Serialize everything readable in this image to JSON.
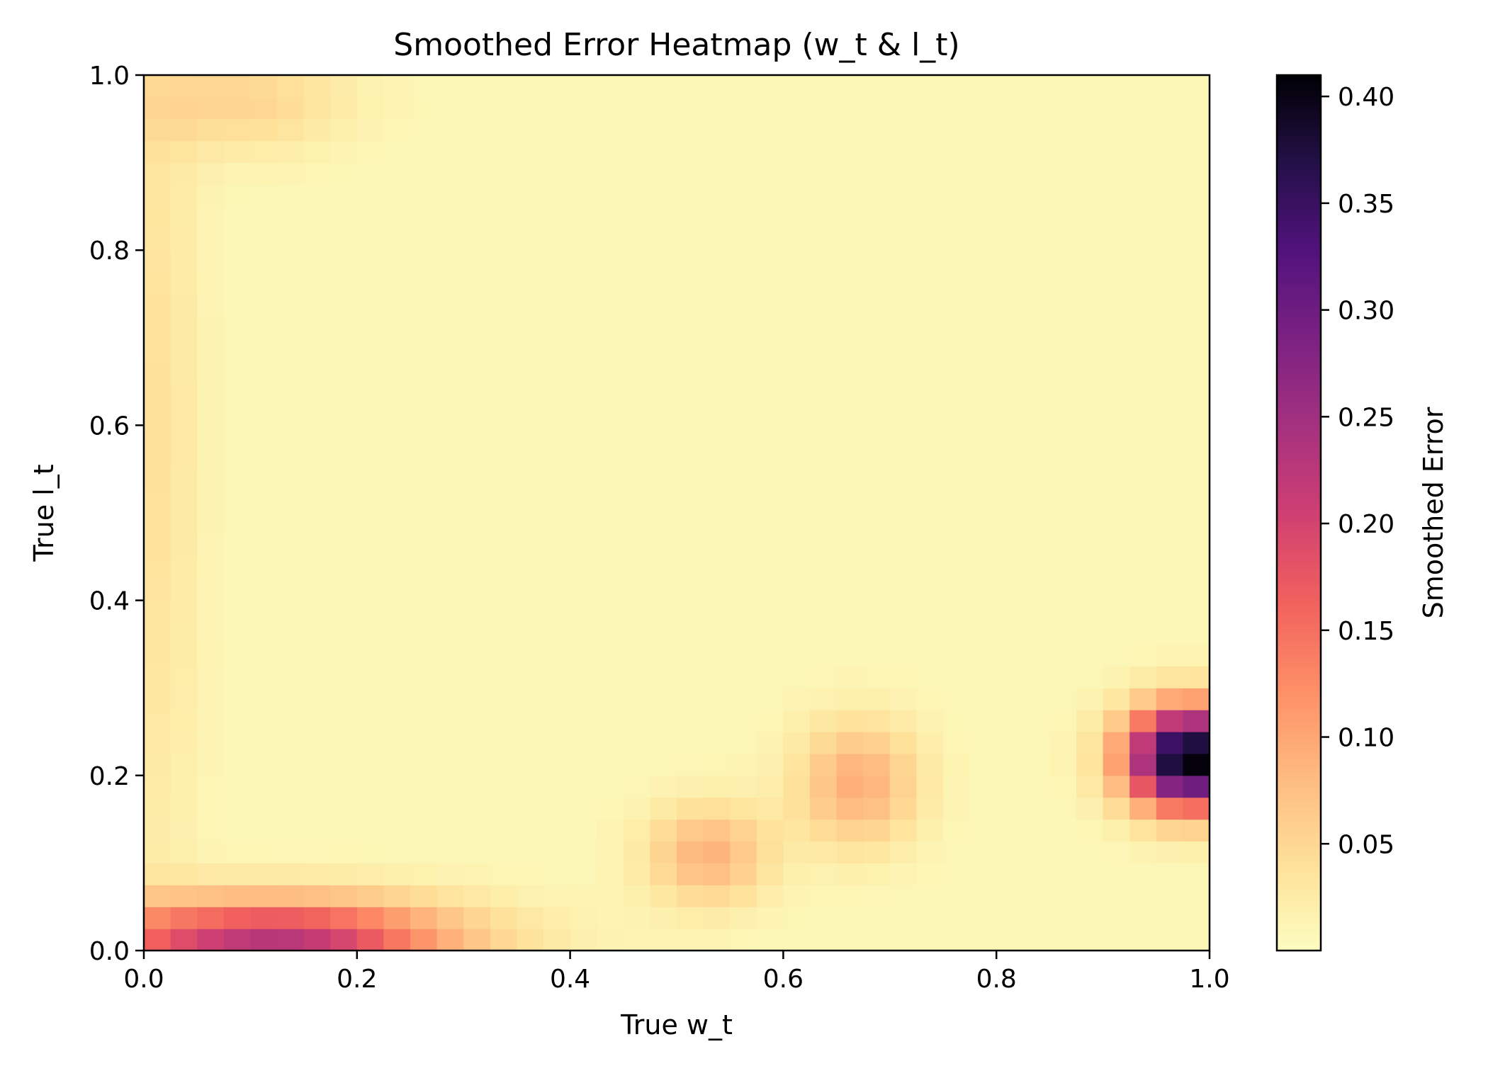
{
  "chart_data": {
    "type": "heatmap",
    "title": "Smoothed Error Heatmap (w_t & l_t)",
    "xlabel": "True w_t",
    "ylabel": "True l_t",
    "xlim": [
      0,
      1
    ],
    "ylim": [
      0,
      1
    ],
    "x_ticks": [
      "0.0",
      "0.2",
      "0.4",
      "0.6",
      "0.8",
      "1.0"
    ],
    "y_ticks": [
      "0.0",
      "0.2",
      "0.4",
      "0.6",
      "0.8",
      "1.0"
    ],
    "grid": false,
    "colormap": "magma_r",
    "grid_resolution": 40,
    "colorbar": {
      "label": "Smoothed Error",
      "range": [
        0.0,
        0.41
      ],
      "ticks": [
        "0.05",
        "0.10",
        "0.15",
        "0.20",
        "0.25",
        "0.30",
        "0.35",
        "0.40"
      ]
    },
    "z_description": {
      "baseline": 0.008,
      "features": [
        {
          "w": 0.98,
          "l": 0.22,
          "peak": 0.41,
          "w_spread": 0.04,
          "l_spread": 0.04
        },
        {
          "w": 0.12,
          "l": 0.01,
          "peak": 0.22,
          "w_spread": 0.12,
          "l_spread": 0.035
        },
        {
          "w": 0.53,
          "l": 0.11,
          "peak": 0.08,
          "w_spread": 0.04,
          "l_spread": 0.04
        },
        {
          "w": 0.67,
          "l": 0.19,
          "peak": 0.085,
          "w_spread": 0.04,
          "l_spread": 0.05
        },
        {
          "w": 0.09,
          "l": 0.97,
          "peak": 0.045,
          "w_spread": 0.07,
          "l_spread": 0.04
        },
        {
          "w": 0.01,
          "l": 0.6,
          "peak": 0.03,
          "w_spread": 0.03,
          "l_spread": 0.4
        }
      ]
    }
  }
}
